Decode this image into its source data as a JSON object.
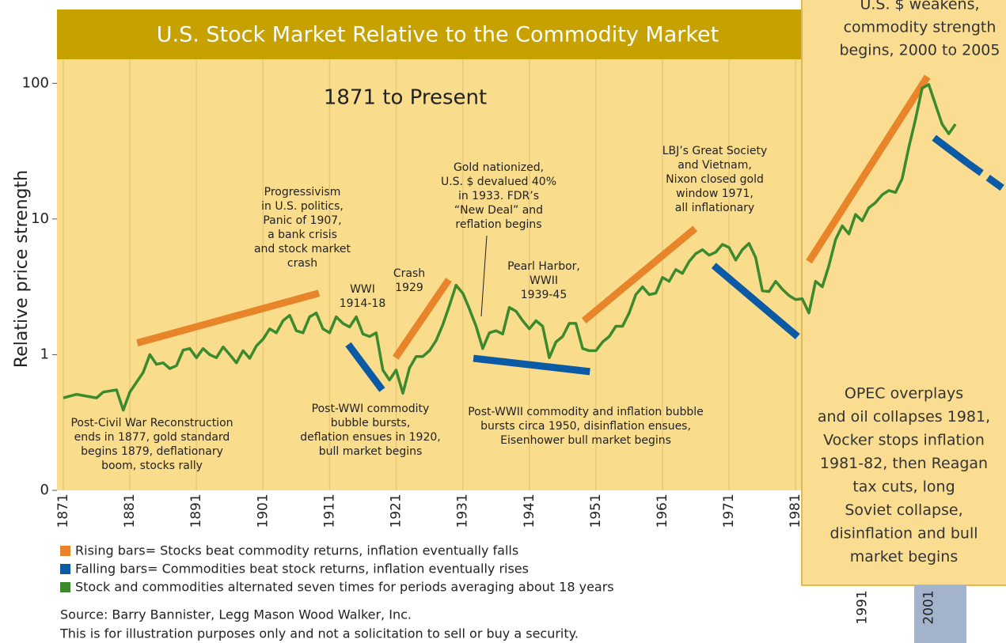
{
  "chart_data": {
    "type": "line",
    "title": "U.S. Stock Market Relative to the Commodity Market",
    "subtitle": "1871 to Present",
    "ylabel": "Relative price strength",
    "log_y": true,
    "grid_x": true,
    "ylim": [
      0.1,
      350
    ],
    "yticks": [
      {
        "value": 0.1,
        "label": "0"
      },
      1,
      10,
      100
    ],
    "xlim": [
      1870.05,
      2012.6
    ],
    "xticks": [
      1871,
      1881,
      1891,
      1901,
      1911,
      1921,
      1931,
      1941,
      1951,
      1961,
      1971,
      1981,
      1991,
      2001
    ],
    "x": [
      1871,
      1873,
      1875,
      1876,
      1877,
      1879,
      1880,
      1881,
      1883,
      1884,
      1885,
      1886,
      1887,
      1888,
      1889,
      1890,
      1891,
      1892,
      1893,
      1894,
      1895,
      1896,
      1897,
      1898,
      1899,
      1900,
      1901,
      1902,
      1903,
      1904,
      1905,
      1906,
      1907,
      1908,
      1909,
      1910,
      1911,
      1912,
      1913,
      1914,
      1915,
      1916,
      1917,
      1918,
      1919,
      1920,
      1921,
      1922,
      1923,
      1924,
      1925,
      1926,
      1927,
      1928,
      1929,
      1930,
      1931,
      1932,
      1933,
      1934,
      1935,
      1936,
      1937,
      1938,
      1939,
      1940,
      1941,
      1942,
      1943,
      1944,
      1945,
      1946,
      1947,
      1948,
      1949,
      1950,
      1951,
      1952,
      1953,
      1954,
      1955,
      1956,
      1957,
      1958,
      1959,
      1960,
      1961,
      1962,
      1963,
      1964,
      1965,
      1966,
      1967,
      1968,
      1969,
      1970,
      1971,
      1972,
      1973,
      1974,
      1975,
      1976,
      1977,
      1978,
      1979,
      1980,
      1981,
      1982,
      1983,
      1984,
      1985,
      1986,
      1987,
      1988,
      1989,
      1990,
      1991,
      1992,
      1993,
      1994,
      1995,
      1996,
      1997,
      1998,
      1999,
      2000,
      2001,
      2002,
      2003,
      2004,
      2005
    ],
    "series": [
      {
        "name": "Stock and commodities alternated seven times for periods averaging about 18 years",
        "color": "#3b8a2e",
        "values": [
          0.48,
          0.51,
          0.49,
          0.48,
          0.53,
          0.55,
          0.39,
          0.53,
          0.74,
          1.0,
          0.85,
          0.87,
          0.79,
          0.83,
          1.08,
          1.11,
          0.95,
          1.11,
          1.0,
          0.95,
          1.14,
          1.0,
          0.87,
          1.07,
          0.94,
          1.16,
          1.3,
          1.55,
          1.45,
          1.78,
          1.95,
          1.5,
          1.45,
          1.9,
          2.03,
          1.55,
          1.45,
          1.9,
          1.7,
          1.6,
          1.9,
          1.42,
          1.36,
          1.45,
          0.77,
          0.65,
          0.77,
          0.52,
          0.8,
          0.97,
          0.97,
          1.07,
          1.27,
          1.66,
          2.3,
          3.25,
          2.84,
          2.17,
          1.62,
          1.11,
          1.45,
          1.5,
          1.42,
          2.23,
          2.09,
          1.78,
          1.55,
          1.78,
          1.62,
          0.95,
          1.24,
          1.36,
          1.7,
          1.7,
          1.11,
          1.07,
          1.07,
          1.24,
          1.36,
          1.62,
          1.62,
          2.03,
          2.77,
          3.16,
          2.77,
          2.84,
          3.71,
          3.47,
          4.24,
          3.97,
          4.85,
          5.55,
          5.94,
          5.41,
          5.7,
          6.5,
          6.17,
          4.98,
          5.94,
          6.6,
          5.2,
          2.96,
          2.92,
          3.47,
          3.04,
          2.73,
          2.55,
          2.58,
          2.03,
          3.47,
          3.16,
          4.54,
          7.06,
          8.9,
          7.76,
          10.8,
          9.7,
          12.1,
          13.2,
          15.1,
          16.2,
          15.7,
          19.8,
          33.8,
          54,
          92,
          98,
          70,
          50,
          42.5,
          50
        ]
      }
    ],
    "rising_bars": {
      "name": "Rising bars= Stocks beat commodity returns, inflation eventually falls",
      "color": "#e8852a",
      "segments": [
        {
          "x": [
            1882.1,
            1909.4
          ],
          "y": [
            1.22,
            2.84
          ]
        },
        {
          "x": [
            1920.9,
            1928.9
          ],
          "y": [
            0.95,
            3.57
          ]
        },
        {
          "x": [
            1949.2,
            1965.9
          ],
          "y": [
            1.78,
            8.5
          ]
        },
        {
          "x": [
            1983,
            2000.8
          ],
          "y": [
            4.85,
            112
          ]
        }
      ]
    },
    "falling_bars": {
      "name": "Falling bars= Commodities beat stock returns, inflation eventually rises",
      "color": "#0b5aa5",
      "segments": [
        {
          "x": [
            1913.8,
            1918.9
          ],
          "y": [
            1.19,
            0.55
          ]
        },
        {
          "x": [
            1932.6,
            1950.1
          ],
          "y": [
            0.94,
            0.75
          ]
        },
        {
          "x": [
            1968.7,
            1981.3
          ],
          "y": [
            4.54,
            1.36
          ]
        },
        {
          "x": [
            2001.8,
            2006.8
          ],
          "y": [
            39.7,
            25.9
          ]
        },
        {
          "x": [
            2006.8,
            2012.6
          ],
          "y": [
            25.9,
            16.2
          ],
          "dashed": true
        }
      ]
    },
    "annotations": [
      [
        "Progressivism",
        "in U.S. politics,",
        "Panic of 1907,",
        "a bank crisis",
        "and stock market",
        "crash"
      ],
      [
        "WWI",
        "1914-18"
      ],
      [
        "Crash",
        "1929"
      ],
      [
        "Gold nationized,",
        "U.S. $ devalued 40%",
        "in 1933. FDR’s",
        "“New Deal” and",
        "reflation begins"
      ],
      [
        "Pearl Harbor,",
        "WWII",
        "1939-45"
      ],
      [
        "LBJ’s Great Society",
        "and Vietnam,",
        "Nixon closed gold",
        "window 1971,",
        "all inflationary"
      ],
      [
        "Post-Civil War Reconstruction",
        "ends in 1877, gold standard",
        "begins 1879, deflationary",
        "boom, stocks rally"
      ],
      [
        "Post-WWI commodity",
        "bubble bursts,",
        "deflation ensues in 1920,",
        "bull market begins"
      ],
      [
        "Post-WWII commodity and inflation bubble",
        "bursts circa 1950, disinflation ensues,",
        "Eisenhower bull market begins"
      ],
      [
        "U.S. $ weakens,",
        "commodity strength",
        "begins, 2000 to 2005"
      ],
      [
        "OPEC overplays",
        "and oil collapses 1981,",
        "Vocker stops inflation",
        "1981-82, then Reagan",
        "tax cuts, long",
        "Soviet collapse,",
        "disinflation and bull",
        "market begins"
      ]
    ],
    "source": [
      "Source: Barry Bannister, Legg Mason Wood Walker, Inc.",
      "This is for illustration purposes only and not a solicitation to sell or buy a security."
    ]
  }
}
